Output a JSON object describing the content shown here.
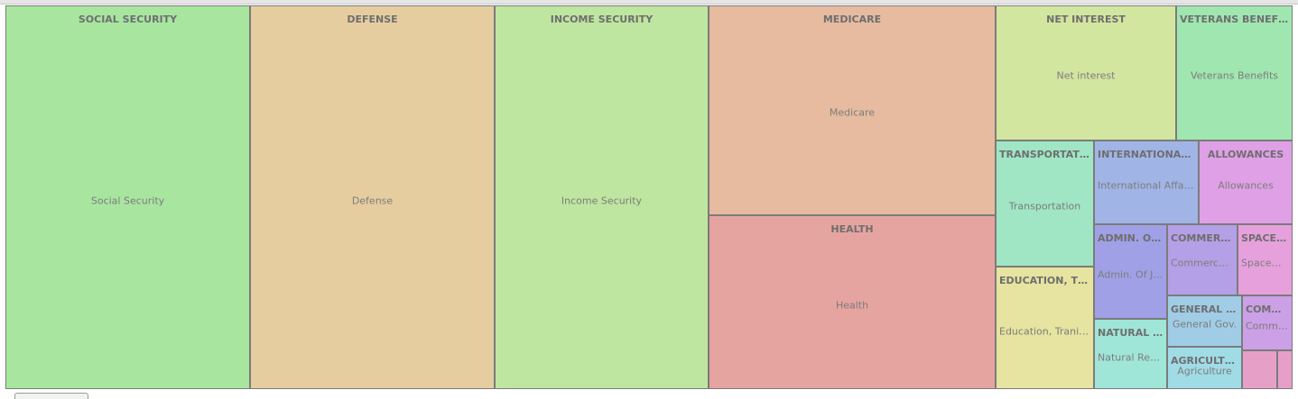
{
  "chart_data": {
    "type": "treemap",
    "cells": [
      {
        "id": "social-security",
        "title": "SOCIAL SECURITY",
        "label": "Social Security",
        "color": "#a8e6a0"
      },
      {
        "id": "defense",
        "title": "DEFENSE",
        "label": "Defense",
        "color": "#e6cda0"
      },
      {
        "id": "income-security",
        "title": "INCOME SECURITY",
        "label": "Income Security",
        "color": "#bee6a0"
      },
      {
        "id": "medicare",
        "title": "MEDICARE",
        "label": "Medicare",
        "color": "#e6bba0"
      },
      {
        "id": "health",
        "title": "HEALTH",
        "label": "Health",
        "color": "#e6a4a0"
      },
      {
        "id": "net-interest",
        "title": "NET INTEREST",
        "label": "Net interest",
        "color": "#d3e6a0"
      },
      {
        "id": "veterans-benefits",
        "title": "VETERANS BENEFITS",
        "label": "Veterans Benefits",
        "color": "#a0e6b0"
      },
      {
        "id": "transportation",
        "title": "TRANSPORTATION",
        "label": "Transportation",
        "color": "#a0e6c4"
      },
      {
        "id": "international-affairs",
        "title": "INTERNATIONAL A...",
        "label": "International Affairs",
        "color": "#a0b4e6"
      },
      {
        "id": "allowances",
        "title": "ALLOWANCES",
        "label": "Allowances",
        "color": "#dfa0e6"
      },
      {
        "id": "education",
        "title": "EDUCATION, TRA...",
        "label": "Education, Traning...",
        "color": "#e6e4a0"
      },
      {
        "id": "admin-of-justice",
        "title": "ADMIN. OF ...",
        "label": "Admin. Of Ju...",
        "color": "#a0a0e6"
      },
      {
        "id": "commerce",
        "title": "COMMERC...",
        "label": "Commerce&...",
        "color": "#b4a0e6"
      },
      {
        "id": "space",
        "title": "SPACE&...",
        "label": "Space&T...",
        "color": "#e6a0dc"
      },
      {
        "id": "natural-resources",
        "title": "NATURAL R...",
        "label": "Natural Reso...",
        "color": "#a0e6d8"
      },
      {
        "id": "general-gov",
        "title": "GENERAL G...",
        "label": "General Gov.",
        "color": "#a0cce6"
      },
      {
        "id": "community",
        "title": "COMM...",
        "label": "Commu...",
        "color": "#cca0e6"
      },
      {
        "id": "agriculture",
        "title": "AGRICULTU...",
        "label": "Agriculture",
        "color": "#a0dce6"
      },
      {
        "id": "small-a",
        "title": "",
        "label": "",
        "color": "#e6a0c8"
      },
      {
        "id": "small-b",
        "title": "",
        "label": "",
        "color": "#e6a0c8"
      }
    ]
  }
}
